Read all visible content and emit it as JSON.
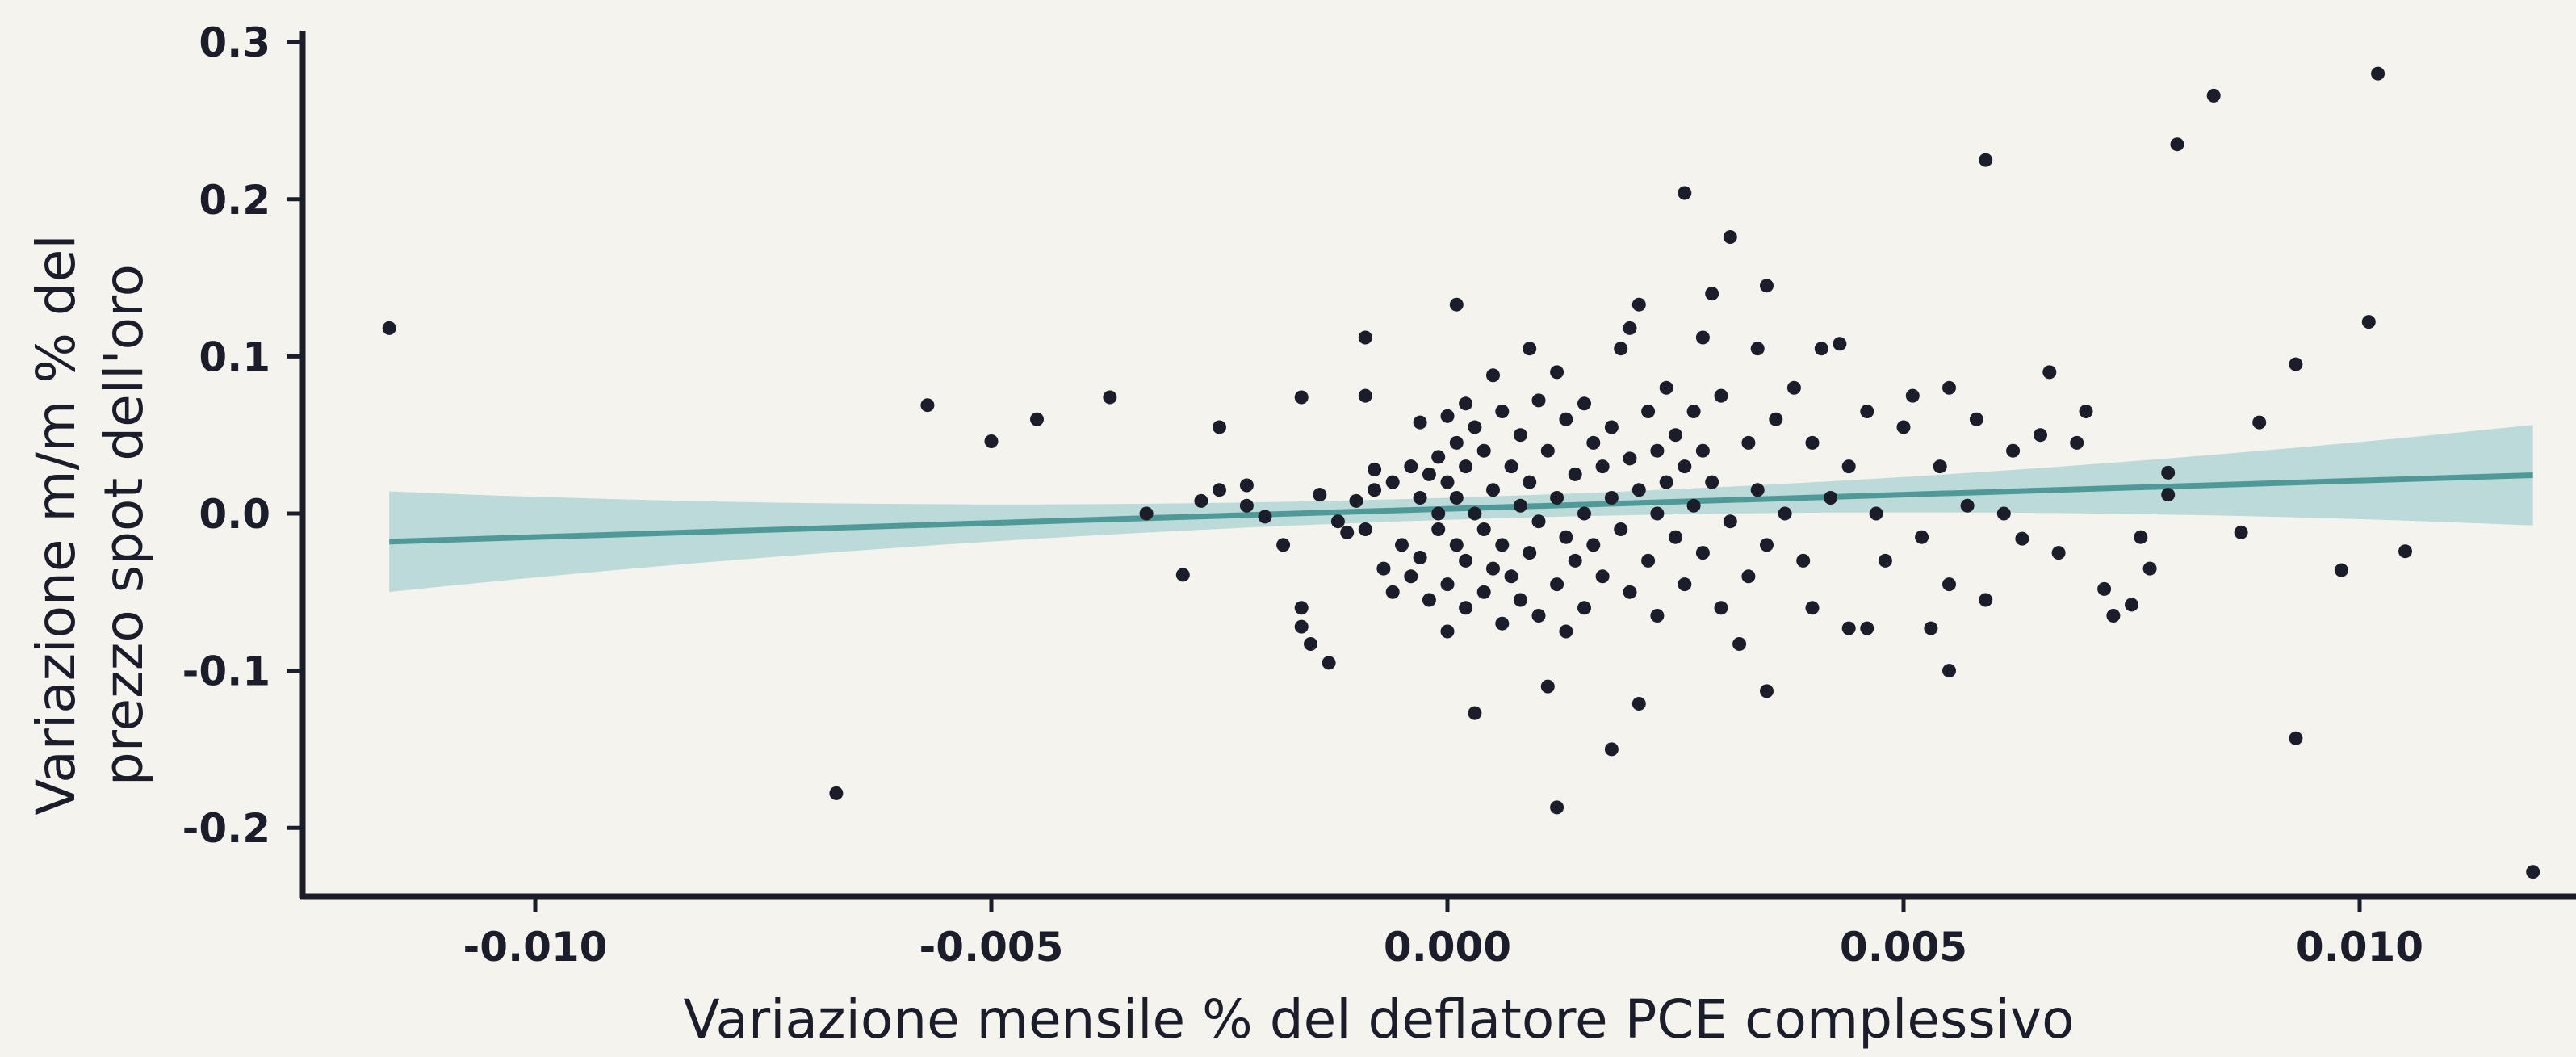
{
  "chart_data": {
    "type": "scatter",
    "title": "",
    "xlabel": "Variazione mensile % del deflatore PCE complessivo",
    "ylabel_lines": [
      "Variazione m/m % del",
      "prezzo spot dell'oro"
    ],
    "xlim": [
      -0.0125,
      0.012
    ],
    "ylim": [
      -0.24,
      0.31
    ],
    "x_ticks": [
      -0.01,
      -0.005,
      0.0,
      0.005,
      0.01
    ],
    "x_tick_labels": [
      "-0.010",
      "-0.005",
      "0.000",
      "0.005",
      "0.010"
    ],
    "y_ticks": [
      0.3,
      0.2,
      0.1,
      0.0,
      -0.1,
      -0.2
    ],
    "y_tick_labels": [
      "0.3",
      "0.2",
      "0.1",
      "0.0",
      "-0.1",
      "-0.2"
    ],
    "grid": false,
    "colors": {
      "points": "#1b1e2a",
      "fit_line": "#4f9a98",
      "band": "#a9d1d0",
      "axis": "#1b1e2a",
      "background": "#f4f3ee"
    },
    "regression": {
      "x_range": [
        -0.0116,
        0.0119
      ],
      "intercept": 0.003,
      "slope": 1.8,
      "band_half_width_at_ends": 0.032,
      "band_half_width_at_center": 0.007
    },
    "points": [
      [
        -0.0116,
        0.118
      ],
      [
        -0.0067,
        -0.178
      ],
      [
        -0.0057,
        0.069
      ],
      [
        -0.005,
        0.046
      ],
      [
        -0.0045,
        0.06
      ],
      [
        -0.0037,
        0.074
      ],
      [
        -0.0033,
        0.0
      ],
      [
        -0.0029,
        -0.039
      ],
      [
        -0.0025,
        0.055
      ],
      [
        -0.0027,
        0.008
      ],
      [
        -0.0025,
        0.015
      ],
      [
        -0.0022,
        0.018
      ],
      [
        -0.0022,
        0.005
      ],
      [
        -0.002,
        -0.002
      ],
      [
        -0.0018,
        -0.02
      ],
      [
        -0.0016,
        0.074
      ],
      [
        -0.0016,
        -0.06
      ],
      [
        -0.0016,
        -0.072
      ],
      [
        -0.0015,
        -0.083
      ],
      [
        -0.0013,
        -0.095
      ],
      [
        -0.0014,
        0.012
      ],
      [
        -0.0012,
        -0.005
      ],
      [
        -0.0011,
        -0.012
      ],
      [
        -0.001,
        0.008
      ],
      [
        -0.0009,
        0.112
      ],
      [
        -0.0009,
        0.075
      ],
      [
        -0.0009,
        -0.01
      ],
      [
        -0.0008,
        0.028
      ],
      [
        -0.0008,
        0.015
      ],
      [
        -0.0007,
        -0.035
      ],
      [
        -0.0006,
        -0.05
      ],
      [
        -0.0006,
        0.02
      ],
      [
        -0.0005,
        -0.02
      ],
      [
        -0.0004,
        0.03
      ],
      [
        -0.0004,
        -0.04
      ],
      [
        -0.0003,
        0.058
      ],
      [
        -0.0003,
        0.01
      ],
      [
        -0.0003,
        -0.028
      ],
      [
        -0.0002,
        0.025
      ],
      [
        -0.0002,
        -0.055
      ],
      [
        -0.0001,
        0.036
      ],
      [
        -0.0001,
        0.0
      ],
      [
        -0.0001,
        -0.01
      ],
      [
        0.0,
        0.062
      ],
      [
        0.0,
        0.02
      ],
      [
        0.0,
        -0.045
      ],
      [
        0.0,
        -0.075
      ],
      [
        0.0001,
        0.133
      ],
      [
        0.0001,
        0.045
      ],
      [
        0.0001,
        0.01
      ],
      [
        0.0001,
        -0.02
      ],
      [
        0.0002,
        0.07
      ],
      [
        0.0002,
        0.03
      ],
      [
        0.0002,
        -0.03
      ],
      [
        0.0002,
        -0.06
      ],
      [
        0.0003,
        0.055
      ],
      [
        0.0003,
        0.0
      ],
      [
        0.0003,
        -0.127
      ],
      [
        0.0004,
        0.04
      ],
      [
        0.0004,
        -0.01
      ],
      [
        0.0004,
        -0.05
      ],
      [
        0.0005,
        0.088
      ],
      [
        0.0005,
        0.015
      ],
      [
        0.0005,
        -0.035
      ],
      [
        0.0006,
        0.065
      ],
      [
        0.0006,
        -0.02
      ],
      [
        0.0006,
        -0.07
      ],
      [
        0.0007,
        0.03
      ],
      [
        0.0007,
        -0.04
      ],
      [
        0.0008,
        0.05
      ],
      [
        0.0008,
        0.005
      ],
      [
        0.0008,
        -0.055
      ],
      [
        0.0009,
        0.105
      ],
      [
        0.0009,
        0.02
      ],
      [
        0.0009,
        -0.025
      ],
      [
        0.001,
        0.072
      ],
      [
        0.001,
        -0.005
      ],
      [
        0.001,
        -0.065
      ],
      [
        0.0011,
        0.04
      ],
      [
        0.0011,
        -0.11
      ],
      [
        0.0012,
        0.09
      ],
      [
        0.0012,
        0.01
      ],
      [
        0.0012,
        -0.045
      ],
      [
        0.0013,
        0.06
      ],
      [
        0.0013,
        -0.015
      ],
      [
        0.0013,
        -0.075
      ],
      [
        0.0014,
        0.025
      ],
      [
        0.0014,
        -0.03
      ],
      [
        0.0015,
        0.07
      ],
      [
        0.0015,
        0.0
      ],
      [
        0.0015,
        -0.06
      ],
      [
        0.0016,
        0.045
      ],
      [
        0.0016,
        -0.02
      ],
      [
        0.0012,
        -0.187
      ],
      [
        0.0017,
        0.03
      ],
      [
        0.0017,
        -0.04
      ],
      [
        0.0018,
        0.055
      ],
      [
        0.0018,
        0.01
      ],
      [
        0.0018,
        -0.15
      ],
      [
        0.0019,
        0.105
      ],
      [
        0.0019,
        -0.01
      ],
      [
        0.002,
        0.118
      ],
      [
        0.002,
        0.035
      ],
      [
        0.002,
        -0.05
      ],
      [
        0.0021,
        0.133
      ],
      [
        0.0021,
        0.015
      ],
      [
        0.0021,
        -0.121
      ],
      [
        0.0022,
        0.065
      ],
      [
        0.0022,
        -0.03
      ],
      [
        0.0023,
        0.04
      ],
      [
        0.0023,
        0.0
      ],
      [
        0.0023,
        -0.065
      ],
      [
        0.0024,
        0.08
      ],
      [
        0.0024,
        0.02
      ],
      [
        0.0025,
        0.05
      ],
      [
        0.0025,
        -0.015
      ],
      [
        0.0026,
        0.204
      ],
      [
        0.0026,
        0.03
      ],
      [
        0.0026,
        -0.045
      ],
      [
        0.0027,
        0.065
      ],
      [
        0.0027,
        0.005
      ],
      [
        0.0028,
        0.112
      ],
      [
        0.0028,
        0.04
      ],
      [
        0.0028,
        -0.025
      ],
      [
        0.0029,
        0.14
      ],
      [
        0.0029,
        0.02
      ],
      [
        0.003,
        0.075
      ],
      [
        0.003,
        -0.06
      ],
      [
        0.0031,
        0.176
      ],
      [
        0.0031,
        -0.005
      ],
      [
        0.0032,
        -0.083
      ],
      [
        0.0033,
        0.045
      ],
      [
        0.0033,
        -0.04
      ],
      [
        0.0034,
        0.105
      ],
      [
        0.0034,
        0.015
      ],
      [
        0.0035,
        0.145
      ],
      [
        0.0035,
        -0.02
      ],
      [
        0.0035,
        -0.113
      ],
      [
        0.0036,
        0.06
      ],
      [
        0.0037,
        0.0
      ],
      [
        0.0038,
        0.08
      ],
      [
        0.0039,
        -0.03
      ],
      [
        0.004,
        0.045
      ],
      [
        0.004,
        -0.06
      ],
      [
        0.0041,
        0.105
      ],
      [
        0.0042,
        0.01
      ],
      [
        0.0043,
        0.108
      ],
      [
        0.0044,
        0.03
      ],
      [
        0.0044,
        -0.073
      ],
      [
        0.0046,
        0.065
      ],
      [
        0.0046,
        -0.073
      ],
      [
        0.0047,
        0.0
      ],
      [
        0.0048,
        -0.03
      ],
      [
        0.005,
        0.055
      ],
      [
        0.0051,
        0.075
      ],
      [
        0.0052,
        -0.015
      ],
      [
        0.0053,
        -0.073
      ],
      [
        0.0054,
        0.03
      ],
      [
        0.0055,
        -0.045
      ],
      [
        0.0055,
        -0.1
      ],
      [
        0.0055,
        0.08
      ],
      [
        0.0057,
        0.005
      ],
      [
        0.0058,
        0.06
      ],
      [
        0.0059,
        -0.055
      ],
      [
        0.0059,
        0.225
      ],
      [
        0.0061,
        0.0
      ],
      [
        0.0062,
        0.04
      ],
      [
        0.0063,
        -0.016
      ],
      [
        0.0065,
        0.05
      ],
      [
        0.0066,
        0.09
      ],
      [
        0.0067,
        -0.025
      ],
      [
        0.0069,
        0.045
      ],
      [
        0.007,
        0.065
      ],
      [
        0.0072,
        -0.048
      ],
      [
        0.0073,
        -0.065
      ],
      [
        0.0075,
        -0.058
      ],
      [
        0.0076,
        -0.015
      ],
      [
        0.0077,
        -0.035
      ],
      [
        0.0079,
        0.012
      ],
      [
        0.0079,
        0.026
      ],
      [
        0.008,
        0.235
      ],
      [
        0.0084,
        0.266
      ],
      [
        0.0087,
        -0.012
      ],
      [
        0.0089,
        0.058
      ],
      [
        0.0093,
        -0.143
      ],
      [
        0.0093,
        0.095
      ],
      [
        0.0098,
        -0.036
      ],
      [
        0.0101,
        0.122
      ],
      [
        0.0102,
        0.28
      ],
      [
        0.0105,
        -0.024
      ],
      [
        0.0119,
        -0.228
      ]
    ]
  }
}
